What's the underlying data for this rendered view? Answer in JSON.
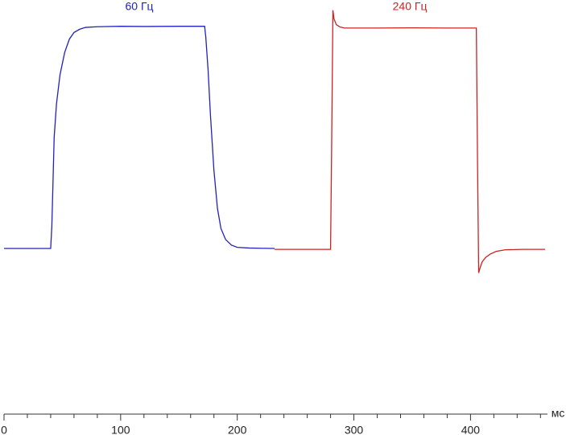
{
  "chart_data": {
    "type": "line",
    "x_label": "мс",
    "xlim": [
      0,
      466
    ],
    "xticks": [
      0,
      100,
      200,
      300,
      400
    ],
    "x_minor_ticks": [
      20,
      40,
      60,
      80,
      120,
      140,
      160,
      180,
      220,
      240,
      260,
      280,
      320,
      340,
      360,
      380,
      420,
      440,
      460
    ],
    "ylim": [
      -74.4,
      111.6
    ],
    "series": [
      {
        "name": "60 Гц",
        "color": "#2222bb",
        "x": [
          0,
          40,
          41,
          42,
          43,
          45,
          48,
          52,
          56,
          60,
          65,
          70,
          80,
          100,
          120,
          150,
          172,
          173,
          175,
          177,
          180,
          183,
          186,
          190,
          195,
          200,
          210,
          220,
          232
        ],
        "values": [
          0,
          0,
          10,
          30,
          50,
          65,
          78,
          88,
          94,
          97,
          98.5,
          99.3,
          99.6,
          99.8,
          99.7,
          99.8,
          99.8,
          95,
          80,
          60,
          35,
          18,
          9,
          4,
          1.5,
          0.5,
          0.2,
          0.1,
          0
        ]
      },
      {
        "name": "240 Гц",
        "color": "#cc2222",
        "x": [
          232,
          250,
          270,
          280,
          281,
          282,
          283,
          285,
          288,
          292,
          300,
          320,
          350,
          380,
          405,
          406,
          407,
          408,
          410,
          413,
          417,
          422,
          430,
          445,
          464
        ],
        "values": [
          -0.4,
          -0.4,
          -0.4,
          -0.4,
          50,
          107,
          103,
          100.5,
          99.5,
          99,
          99,
          99,
          99.1,
          99,
          99,
          40,
          -11,
          -9,
          -6,
          -4,
          -2.5,
          -1.3,
          -0.6,
          -0.4,
          -0.4
        ]
      }
    ]
  }
}
